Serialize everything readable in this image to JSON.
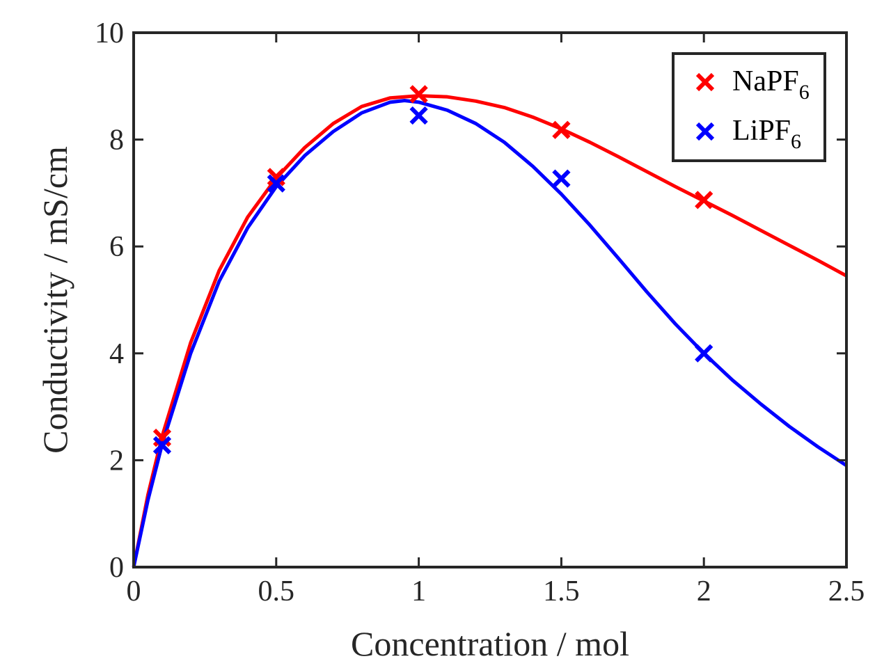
{
  "chart_data": {
    "type": "line",
    "title": "",
    "xlabel": "Concentration / mol",
    "ylabel": "Conductivity / mS/cm",
    "xlim": [
      0,
      2.5
    ],
    "ylim": [
      0,
      10
    ],
    "x_ticks": [
      0,
      0.5,
      1,
      1.5,
      2,
      2.5
    ],
    "x_tick_labels": [
      "0",
      "0.5",
      "1",
      "1.5",
      "2",
      "2.5"
    ],
    "y_ticks": [
      0,
      2,
      4,
      6,
      8,
      10
    ],
    "y_tick_labels": [
      "0",
      "2",
      "4",
      "6",
      "8",
      "10"
    ],
    "grid": false,
    "legend_position": "top-right",
    "series": [
      {
        "name": "NaPF",
        "name_subscript": "6",
        "color": "#ff0000",
        "marker": "x",
        "points": [
          {
            "x": 0.1,
            "y": 2.42
          },
          {
            "x": 0.5,
            "y": 7.3
          },
          {
            "x": 1.0,
            "y": 8.85
          },
          {
            "x": 1.5,
            "y": 8.18
          },
          {
            "x": 2.0,
            "y": 6.87
          }
        ],
        "fit": [
          {
            "x": 0,
            "y": 0
          },
          {
            "x": 0.05,
            "y": 1.35
          },
          {
            "x": 0.1,
            "y": 2.45
          },
          {
            "x": 0.2,
            "y": 4.2
          },
          {
            "x": 0.3,
            "y": 5.55
          },
          {
            "x": 0.4,
            "y": 6.55
          },
          {
            "x": 0.5,
            "y": 7.28
          },
          {
            "x": 0.6,
            "y": 7.85
          },
          {
            "x": 0.7,
            "y": 8.3
          },
          {
            "x": 0.8,
            "y": 8.62
          },
          {
            "x": 0.9,
            "y": 8.78
          },
          {
            "x": 1.0,
            "y": 8.82
          },
          {
            "x": 1.1,
            "y": 8.8
          },
          {
            "x": 1.2,
            "y": 8.72
          },
          {
            "x": 1.3,
            "y": 8.6
          },
          {
            "x": 1.4,
            "y": 8.42
          },
          {
            "x": 1.5,
            "y": 8.2
          },
          {
            "x": 1.6,
            "y": 7.95
          },
          {
            "x": 1.7,
            "y": 7.68
          },
          {
            "x": 1.8,
            "y": 7.4
          },
          {
            "x": 1.9,
            "y": 7.12
          },
          {
            "x": 2.0,
            "y": 6.85
          },
          {
            "x": 2.1,
            "y": 6.58
          },
          {
            "x": 2.2,
            "y": 6.3
          },
          {
            "x": 2.3,
            "y": 6.02
          },
          {
            "x": 2.4,
            "y": 5.74
          },
          {
            "x": 2.5,
            "y": 5.45
          }
        ]
      },
      {
        "name": "LiPF",
        "name_subscript": "6",
        "color": "#0000ff",
        "marker": "x",
        "points": [
          {
            "x": 0.1,
            "y": 2.28
          },
          {
            "x": 0.5,
            "y": 7.18
          },
          {
            "x": 1.0,
            "y": 8.45
          },
          {
            "x": 1.5,
            "y": 7.27
          },
          {
            "x": 2.0,
            "y": 4.0
          }
        ],
        "fit": [
          {
            "x": 0,
            "y": 0
          },
          {
            "x": 0.05,
            "y": 1.25
          },
          {
            "x": 0.1,
            "y": 2.3
          },
          {
            "x": 0.2,
            "y": 4.0
          },
          {
            "x": 0.3,
            "y": 5.35
          },
          {
            "x": 0.4,
            "y": 6.35
          },
          {
            "x": 0.5,
            "y": 7.12
          },
          {
            "x": 0.6,
            "y": 7.7
          },
          {
            "x": 0.7,
            "y": 8.15
          },
          {
            "x": 0.8,
            "y": 8.5
          },
          {
            "x": 0.9,
            "y": 8.7
          },
          {
            "x": 0.95,
            "y": 8.73
          },
          {
            "x": 1.0,
            "y": 8.7
          },
          {
            "x": 1.1,
            "y": 8.55
          },
          {
            "x": 1.2,
            "y": 8.3
          },
          {
            "x": 1.3,
            "y": 7.95
          },
          {
            "x": 1.4,
            "y": 7.5
          },
          {
            "x": 1.5,
            "y": 6.98
          },
          {
            "x": 1.6,
            "y": 6.4
          },
          {
            "x": 1.7,
            "y": 5.78
          },
          {
            "x": 1.8,
            "y": 5.15
          },
          {
            "x": 1.9,
            "y": 4.55
          },
          {
            "x": 2.0,
            "y": 4.0
          },
          {
            "x": 2.1,
            "y": 3.5
          },
          {
            "x": 2.2,
            "y": 3.05
          },
          {
            "x": 2.3,
            "y": 2.63
          },
          {
            "x": 2.4,
            "y": 2.25
          },
          {
            "x": 2.5,
            "y": 1.9
          }
        ]
      }
    ]
  }
}
